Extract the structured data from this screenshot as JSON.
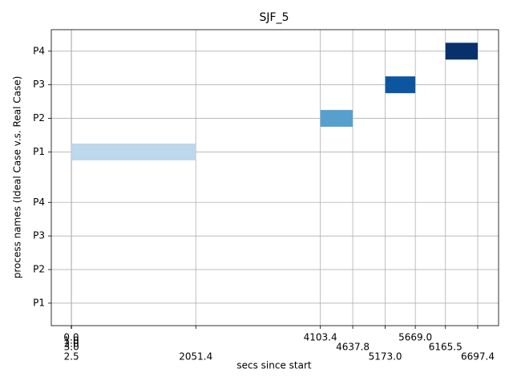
{
  "chart_data": {
    "type": "gantt",
    "title": "SJF_5",
    "xlabel": "secs since start",
    "ylabel": "process names (Ideal Case v.s. Real Case)",
    "xlim": [
      -330,
      7041
    ],
    "ylim": [
      0.33,
      9.14
    ],
    "xticks": [
      {
        "value": 0,
        "label": "0.0"
      },
      {
        "value": 1,
        "label": "1.0"
      },
      {
        "value": 2,
        "label": "2.0"
      },
      {
        "value": 3,
        "label": "3.0"
      },
      2.5,
      2051.4,
      4103.4,
      4637.8,
      {
        "value": 5173,
        "label": "5173.0"
      },
      {
        "value": 5669,
        "label": "5669.0"
      },
      6165.5,
      6697.4
    ],
    "yticks": [
      {
        "value": 1,
        "label": "P1"
      },
      {
        "value": 2,
        "label": "P2"
      },
      {
        "value": 3,
        "label": "P3"
      },
      {
        "value": 4,
        "label": "P4"
      },
      {
        "value": 5.5,
        "label": "P1"
      },
      {
        "value": 6.5,
        "label": "P2"
      },
      {
        "value": 7.5,
        "label": "P3"
      },
      {
        "value": 8.5,
        "label": "P4"
      }
    ],
    "grid": true,
    "bars": [
      {
        "row": 5.5,
        "start": 2.5,
        "end": 2051.4,
        "color": "#bdd7ec"
      },
      {
        "row": 6.5,
        "start": 4103.4,
        "end": 4637.8,
        "color": "#57a0ce"
      },
      {
        "row": 7.5,
        "start": 5173,
        "end": 5669,
        "color": "#0c56a0"
      },
      {
        "row": 8.5,
        "start": 6165.5,
        "end": 6697.4,
        "color": "#08306b"
      }
    ]
  }
}
